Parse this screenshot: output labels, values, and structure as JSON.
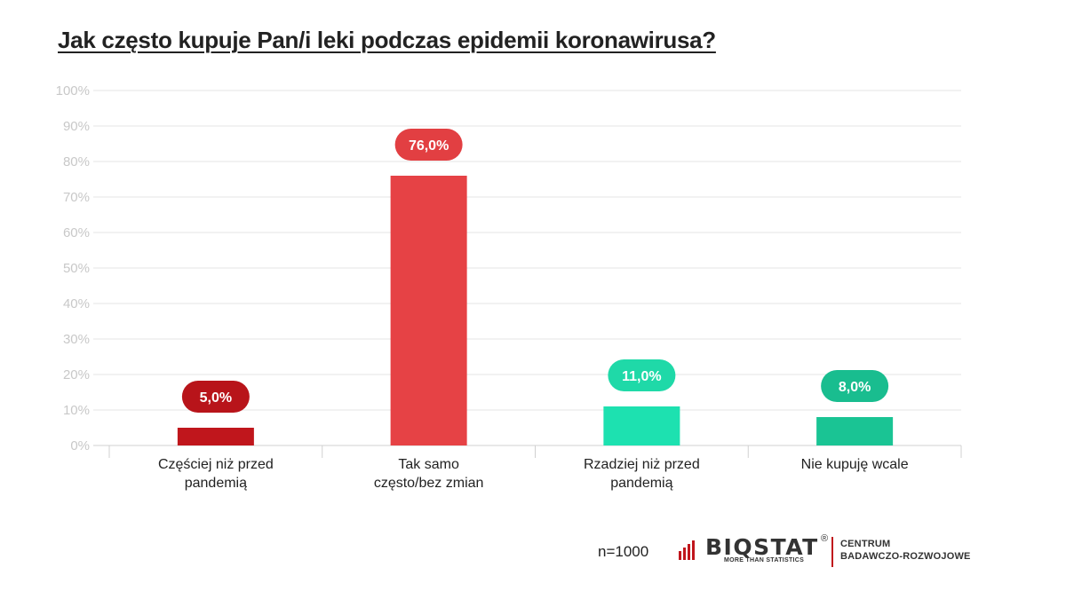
{
  "chart_data": {
    "type": "bar",
    "title": "Jak często kupuje Pan/i leki podczas epidemii koronawirusa?",
    "categories": [
      [
        "Częściej niż przed",
        "pandemią"
      ],
      [
        "Tak samo",
        "często/bez zmian"
      ],
      [
        "Rzadziej niż przed",
        "pandemią"
      ],
      [
        "Nie kupuję wcale"
      ]
    ],
    "values": [
      5.0,
      76.0,
      11.0,
      8.0
    ],
    "value_labels": [
      "5,0%",
      "76,0%",
      "11,0%",
      "8,0%"
    ],
    "colors": [
      "#c0161c",
      "#e64245",
      "#1de1b0",
      "#1ac494"
    ],
    "label_colors": [
      "#b8141a",
      "#e23f42",
      "#1fd9a8",
      "#19bd8f"
    ],
    "ylim": [
      0,
      100
    ],
    "yticks": [
      "0%",
      "10%",
      "20%",
      "30%",
      "40%",
      "50%",
      "60%",
      "70%",
      "80%",
      "90%",
      "100%"
    ],
    "grid": true,
    "legend": "none"
  },
  "footer": {
    "sample": "n=1000",
    "logo_name": "BIQSTAT",
    "logo_reg": "®",
    "logo_tagline": "MORE THAN STATISTICS",
    "logo_centre_line1": "CENTRUM",
    "logo_centre_line2": "BADAWCZO-ROZWOJOWE",
    "logo_accent": "#c0161c"
  }
}
